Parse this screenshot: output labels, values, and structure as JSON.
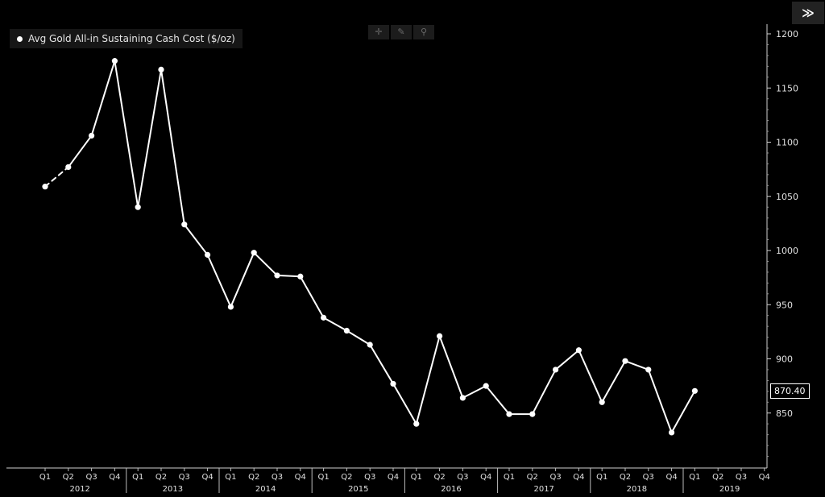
{
  "toolbar": {
    "expand_label": "≫",
    "crosshair_icon": "crosshair-icon",
    "draw_icon": "pen-icon",
    "zoom_icon": "magnifier-icon"
  },
  "chart_data": {
    "type": "line",
    "legend": {
      "label": "Avg Gold All-in Sustaining Cash Cost ($/oz)",
      "placement": "top-left"
    },
    "last_value_label": "870.40",
    "ylim": [
      800,
      1200
    ],
    "yticks": [
      850,
      900,
      950,
      1000,
      1050,
      1100,
      1150,
      1200
    ],
    "y_axis_side": "right",
    "grid": false,
    "quarters": [
      "Q1",
      "Q2",
      "Q3",
      "Q4",
      "Q1",
      "Q2",
      "Q3",
      "Q4",
      "Q1",
      "Q2",
      "Q3",
      "Q4",
      "Q1",
      "Q2",
      "Q3",
      "Q4",
      "Q1",
      "Q2",
      "Q3",
      "Q4",
      "Q1",
      "Q2",
      "Q3",
      "Q4",
      "Q1",
      "Q2",
      "Q3",
      "Q4",
      "Q1",
      "Q2",
      "Q3",
      "Q4"
    ],
    "years": [
      "2012",
      "2013",
      "2014",
      "2015",
      "2016",
      "2017",
      "2018",
      "2019"
    ],
    "series": [
      {
        "color": "#ffffff",
        "values": [
          1059,
          1077,
          1106,
          1175,
          1040,
          1167,
          1024,
          996,
          948,
          998,
          977,
          976,
          938,
          926,
          913,
          877,
          840,
          921,
          864,
          875,
          849,
          849,
          890,
          908,
          860,
          898,
          890,
          832,
          870.4,
          null,
          null,
          null
        ],
        "dashed_segments": [
          0
        ]
      }
    ]
  }
}
